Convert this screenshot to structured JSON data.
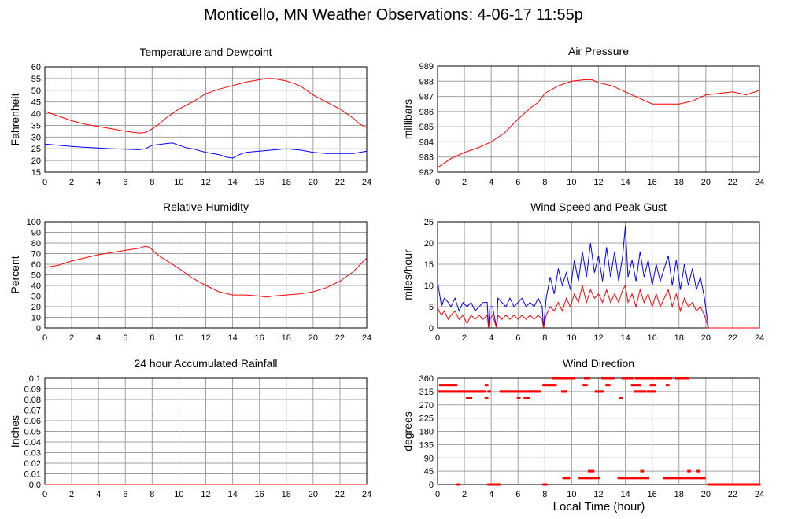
{
  "page": {
    "title": "Monticello, MN Weather Observations: 4-06-17 11:55p",
    "xlabel": "Local Time (hour)"
  },
  "colors": {
    "red": "#ff0000",
    "blue": "#0000ff",
    "grid": "#a0a0a0",
    "axis": "#000000"
  },
  "chart_data": [
    {
      "id": "temp",
      "type": "line",
      "title": "Temperature and Dewpoint",
      "xlabel": "",
      "ylabel": "Fahrenheit",
      "xlim": [
        0,
        24
      ],
      "ylim": [
        15,
        60
      ],
      "xticks": [
        0,
        2,
        4,
        6,
        8,
        10,
        12,
        14,
        16,
        18,
        20,
        22,
        24
      ],
      "yticks": [
        15,
        20,
        25,
        30,
        35,
        40,
        45,
        50,
        55,
        60
      ],
      "grid": true,
      "series": [
        {
          "color": "#ff0000",
          "x": [
            0,
            1,
            2,
            3,
            4,
            5,
            6,
            7,
            7.5,
            8,
            8.5,
            9,
            10,
            11,
            12,
            13,
            14,
            15,
            16,
            16.5,
            17,
            18,
            19,
            20,
            21,
            22,
            23,
            23.5,
            24
          ],
          "y": [
            41,
            39,
            37,
            35.5,
            34.5,
            33.5,
            32.5,
            31.7,
            32,
            33.5,
            35.5,
            38,
            42,
            45,
            48.5,
            50.5,
            52,
            53.5,
            54.5,
            55,
            55,
            54,
            52,
            48,
            45,
            42,
            38,
            35.5,
            34
          ]
        },
        {
          "color": "#0000ff",
          "x": [
            0,
            1,
            2,
            3,
            4,
            5,
            6,
            7,
            7.5,
            8,
            9,
            9.5,
            10,
            10.5,
            11,
            12,
            13,
            13.5,
            14,
            14.5,
            15,
            16,
            17,
            18,
            19,
            20,
            21,
            22,
            23,
            24
          ],
          "y": [
            27,
            26.5,
            26,
            25.6,
            25.3,
            25,
            24.8,
            24.6,
            25,
            26.5,
            27.2,
            27.5,
            26.5,
            25.5,
            25,
            23.5,
            22.5,
            21.5,
            21,
            22.5,
            23.5,
            24,
            24.5,
            25,
            24.5,
            23.5,
            23,
            23,
            23,
            24
          ]
        }
      ]
    },
    {
      "id": "pressure",
      "type": "line",
      "title": "Air Pressure",
      "xlabel": "",
      "ylabel": "millibars",
      "xlim": [
        0,
        24
      ],
      "ylim": [
        982,
        989
      ],
      "xticks": [
        0,
        2,
        4,
        6,
        8,
        10,
        12,
        14,
        16,
        18,
        20,
        22,
        24
      ],
      "yticks": [
        982,
        983,
        984,
        985,
        986,
        987,
        988,
        989
      ],
      "grid": true,
      "series": [
        {
          "color": "#ff0000",
          "x": [
            0,
            0.5,
            1,
            2,
            3,
            4,
            5,
            6,
            6.5,
            7,
            7.5,
            8,
            9,
            10,
            11,
            11.5,
            12,
            13,
            14,
            15,
            16,
            17,
            18,
            19,
            20,
            21,
            22,
            23,
            24
          ],
          "y": [
            982.3,
            982.6,
            982.9,
            983.3,
            983.6,
            984.0,
            984.6,
            985.5,
            985.9,
            986.3,
            986.6,
            987.2,
            987.7,
            988.0,
            988.1,
            988.1,
            987.9,
            987.7,
            987.3,
            986.9,
            986.5,
            986.5,
            986.5,
            986.7,
            987.1,
            987.2,
            987.3,
            987.1,
            987.4
          ]
        }
      ]
    },
    {
      "id": "humidity",
      "type": "line",
      "title": "Relative Humidity",
      "xlabel": "",
      "ylabel": "Percent",
      "xlim": [
        0,
        24
      ],
      "ylim": [
        0,
        100
      ],
      "xticks": [
        0,
        2,
        4,
        6,
        8,
        10,
        12,
        14,
        16,
        18,
        20,
        22,
        24
      ],
      "yticks": [
        0,
        10,
        20,
        30,
        40,
        50,
        60,
        70,
        80,
        90,
        100
      ],
      "grid": true,
      "series": [
        {
          "color": "#ff0000",
          "x": [
            0,
            1,
            2,
            3,
            4,
            5,
            6,
            7,
            7.5,
            7.8,
            8.5,
            9,
            10,
            11,
            12,
            13,
            14,
            15,
            16,
            16.5,
            17,
            18,
            19,
            20,
            21,
            22,
            23,
            24
          ],
          "y": [
            57,
            59,
            63,
            66,
            69,
            71,
            73,
            75,
            77,
            76,
            68,
            64,
            56,
            47,
            40,
            34,
            31,
            31,
            30,
            29,
            30,
            31,
            32,
            34,
            38,
            44,
            53,
            66
          ]
        }
      ]
    },
    {
      "id": "wind",
      "type": "line",
      "title": "Wind Speed and Peak Gust",
      "xlabel": "",
      "ylabel": "miles/hour",
      "xlim": [
        0,
        24
      ],
      "ylim": [
        0,
        25
      ],
      "xticks": [
        0,
        2,
        4,
        6,
        8,
        10,
        12,
        14,
        16,
        18,
        20,
        22,
        24
      ],
      "yticks": [
        0,
        5,
        10,
        15,
        20,
        25
      ],
      "grid": true,
      "series": [
        {
          "color": "#0000ff",
          "x": [
            0,
            0.1,
            0.3,
            0.5,
            0.8,
            1,
            1.3,
            1.6,
            1.9,
            2.2,
            2.5,
            2.8,
            3.1,
            3.4,
            3.7,
            3.8,
            3.9,
            4.1,
            4.4,
            4.5,
            4.8,
            5.1,
            5.4,
            5.7,
            6,
            6.3,
            6.6,
            6.9,
            7.2,
            7.5,
            7.8,
            7.9,
            8.1,
            8.4,
            8.7,
            9,
            9.3,
            9.6,
            9.9,
            10.2,
            10.5,
            10.8,
            11.1,
            11.4,
            11.7,
            12,
            12.3,
            12.6,
            12.9,
            13.2,
            13.5,
            13.8,
            14,
            14.2,
            14.5,
            14.8,
            15.1,
            15.4,
            15.7,
            16,
            16.3,
            16.6,
            16.9,
            17.2,
            17.5,
            17.8,
            18.1,
            18.4,
            18.7,
            19,
            19.3,
            19.6,
            19.9,
            20.2,
            20.4,
            21,
            22,
            23,
            24
          ],
          "y": [
            11,
            9,
            5,
            7,
            6,
            5,
            7,
            4,
            6,
            5,
            6,
            4,
            5,
            6,
            6,
            0,
            5,
            5,
            0,
            7,
            6,
            5,
            7,
            5,
            6,
            7,
            5,
            6,
            5,
            7,
            5,
            0,
            7,
            12,
            8,
            14,
            10,
            13,
            9,
            16,
            11,
            18,
            12,
            20,
            13,
            17,
            11,
            19,
            12,
            18,
            11,
            17,
            24,
            12,
            16,
            11,
            18,
            12,
            16,
            10,
            15,
            11,
            14,
            17,
            10,
            16,
            9,
            15,
            10,
            14,
            9,
            12,
            7,
            0,
            0,
            0,
            0,
            0,
            0
          ]
        },
        {
          "color": "#ff0000",
          "x": [
            0,
            0.1,
            0.3,
            0.5,
            0.8,
            1,
            1.3,
            1.6,
            1.9,
            2.2,
            2.5,
            2.8,
            3.1,
            3.4,
            3.7,
            3.8,
            3.9,
            4.1,
            4.4,
            4.5,
            4.8,
            5.1,
            5.4,
            5.7,
            6,
            6.3,
            6.6,
            6.9,
            7.2,
            7.5,
            7.8,
            7.9,
            8.1,
            8.4,
            8.7,
            9,
            9.3,
            9.6,
            9.9,
            10.2,
            10.5,
            10.8,
            11.1,
            11.4,
            11.7,
            12,
            12.3,
            12.6,
            12.9,
            13.2,
            13.5,
            13.8,
            14,
            14.2,
            14.5,
            14.8,
            15.1,
            15.4,
            15.7,
            16,
            16.3,
            16.6,
            16.9,
            17.2,
            17.5,
            17.8,
            18.1,
            18.4,
            18.7,
            19,
            19.3,
            19.6,
            19.9,
            20.2,
            20.4,
            21,
            22,
            23,
            24
          ],
          "y": [
            5,
            4,
            3,
            4,
            2,
            3,
            4,
            2,
            3,
            1,
            3,
            2,
            3,
            2,
            3,
            0,
            2,
            3,
            0,
            3,
            2,
            3,
            2,
            3,
            2,
            3,
            2,
            3,
            2,
            3,
            2,
            0,
            3,
            5,
            4,
            6,
            4,
            7,
            5,
            8,
            6,
            10,
            6,
            9,
            7,
            8,
            6,
            9,
            6,
            8,
            6,
            9,
            10,
            6,
            8,
            5,
            9,
            6,
            8,
            5,
            8,
            5,
            7,
            9,
            5,
            8,
            4,
            7,
            5,
            6,
            4,
            5,
            3,
            0,
            0,
            0,
            0,
            0,
            0
          ]
        }
      ]
    },
    {
      "id": "rain",
      "type": "line",
      "title": "24 hour Accumulated Rainfall",
      "xlabel": "",
      "ylabel": "Inches",
      "xlim": [
        0,
        24
      ],
      "ylim": [
        0,
        0.1
      ],
      "xticks": [
        0,
        2,
        4,
        6,
        8,
        10,
        12,
        14,
        16,
        18,
        20,
        22,
        24
      ],
      "yticks": [
        0.0,
        0.01,
        0.02,
        0.03,
        0.04,
        0.05,
        0.06,
        0.07,
        0.08,
        0.09,
        0.1
      ],
      "ytick_labels": [
        "0.0",
        "0.01",
        "0.02",
        "0.03",
        "0.04",
        "0.05",
        "0.06",
        "0.07",
        "0.08",
        "0.09",
        "0.1"
      ],
      "grid": true,
      "series": [
        {
          "color": "#ff0000",
          "x": [
            0,
            24
          ],
          "y": [
            0,
            0
          ]
        }
      ]
    },
    {
      "id": "direction",
      "type": "scatter",
      "title": "Wind Direction",
      "xlabel": "Local Time (hour)",
      "ylabel": "degrees",
      "xlim": [
        0,
        24
      ],
      "ylim": [
        0,
        360
      ],
      "xticks": [
        0,
        2,
        4,
        6,
        8,
        10,
        12,
        14,
        16,
        18,
        20,
        22,
        24
      ],
      "yticks": [
        0,
        45,
        90,
        135,
        180,
        225,
        270,
        315,
        360
      ],
      "grid": true,
      "series": [
        {
          "color": "#ff0000",
          "segments": [
            {
              "y": 337,
              "ranges": [
                [
                  0.2,
                  1.4
                ],
                [
                  3.6,
                  3.7
                ],
                [
                  7.9,
                  8.8
                ]
              ]
            },
            {
              "y": 315,
              "ranges": [
                [
                  0.1,
                  3.5
                ],
                [
                  3.8,
                  3.9
                ],
                [
                  4.7,
                  7.6
                ],
                [
                  9.3,
                  9.6
                ],
                [
                  11.8,
                  12.3
                ],
                [
                  14.7,
                  15.5
                ],
                [
                  15.7,
                  16.2
                ]
              ]
            },
            {
              "y": 292,
              "ranges": [
                [
                  2.2,
                  2.5
                ],
                [
                  3.6,
                  3.7
                ],
                [
                  6.0,
                  6.1
                ],
                [
                  6.5,
                  6.8
                ],
                [
                  13.6,
                  13.7
                ]
              ]
            },
            {
              "y": 360,
              "ranges": [
                [
                  8.6,
                  10.2
                ],
                [
                  11.0,
                  11.3
                ],
                [
                  12.3,
                  13.1
                ],
                [
                  13.8,
                  14.5
                ],
                [
                  14.8,
                  16.1
                ],
                [
                  16.3,
                  17.4
                ],
                [
                  17.8,
                  18.7
                ]
              ]
            },
            {
              "y": 337,
              "ranges": [
                [
                  10.9,
                  11.1
                ],
                [
                  12.6,
                  12.8
                ],
                [
                  14.5,
                  15.1
                ],
                [
                  15.9,
                  16.2
                ],
                [
                  17.1,
                  17.2
                ]
              ]
            },
            {
              "y": 22,
              "ranges": [
                [
                  9.4,
                  9.8
                ],
                [
                  10.6,
                  12.0
                ],
                [
                  13.5,
                  15.7
                ],
                [
                  16.9,
                  19.9
                ]
              ]
            },
            {
              "y": 45,
              "ranges": [
                [
                  11.3,
                  11.6
                ],
                [
                  15.2,
                  15.3
                ],
                [
                  18.7,
                  18.8
                ],
                [
                  19.4,
                  19.5
                ]
              ]
            },
            {
              "y": 0,
              "ranges": [
                [
                  1.5,
                  1.6
                ],
                [
                  3.8,
                  4.6
                ],
                [
                  7.9,
                  8.1
                ],
                [
                  20.2,
                  24.0
                ]
              ]
            }
          ]
        }
      ]
    }
  ]
}
